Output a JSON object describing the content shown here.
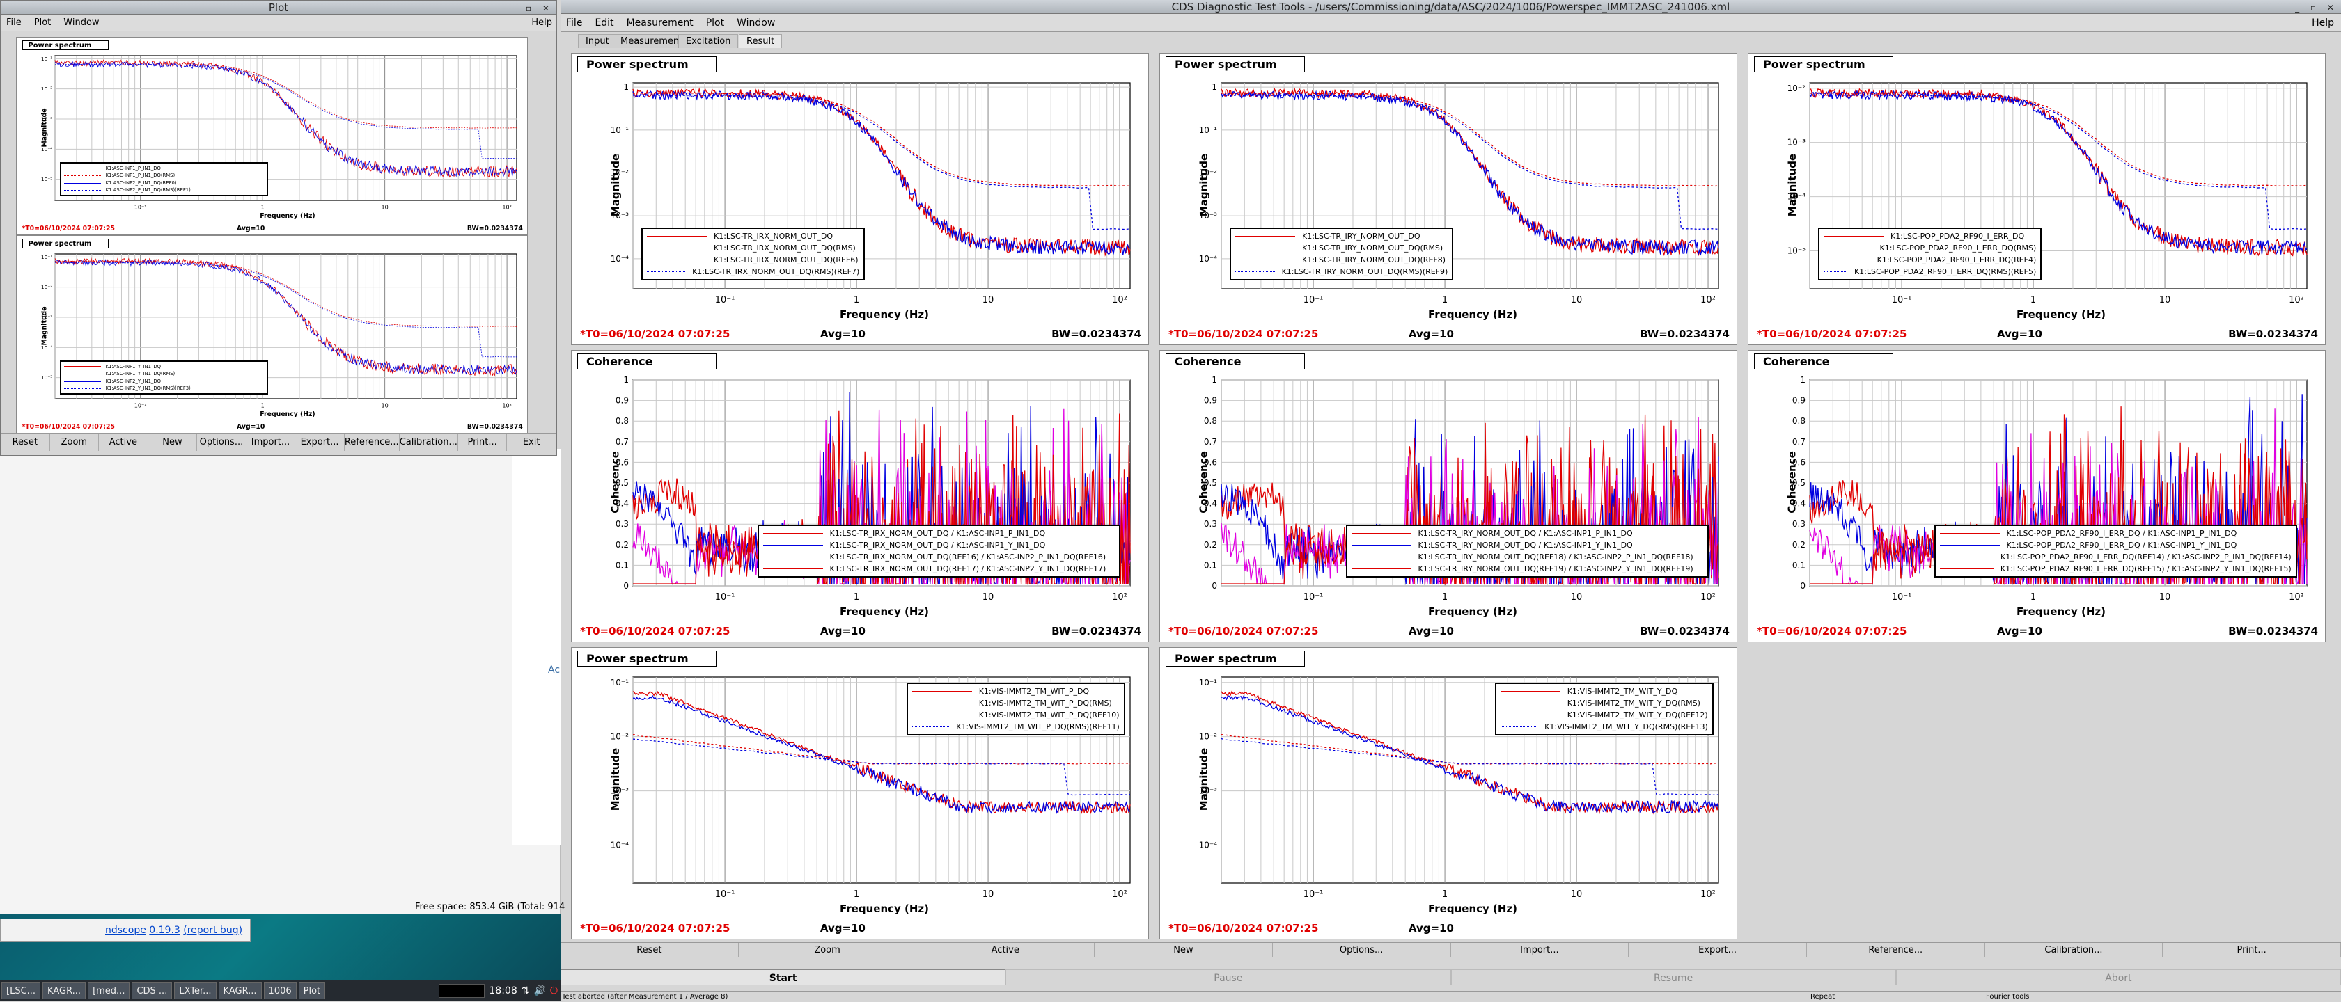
{
  "main_window": {
    "title": "CDS Diagnostic Test Tools - /users/Commissioning/data/ASC/2024/1006/Powerspec_IMMT2ASC_241006.xml",
    "menu": [
      "File",
      "Edit",
      "Measurement",
      "Plot",
      "Window"
    ],
    "help": "Help",
    "tabs": [
      "Input",
      "Measurement",
      "Excitation",
      "Result"
    ],
    "active_tab": "Result",
    "buttons": [
      "Reset",
      "Zoom",
      "Active",
      "New",
      "Options...",
      "Import...",
      "Export...",
      "Reference...",
      "Calibration...",
      "Print..."
    ],
    "actions": [
      "Start",
      "Pause",
      "Resume",
      "Abort"
    ],
    "status": {
      "left": "Test aborted (after Measurement 1 / Average 8)",
      "mid": "Repeat",
      "right": "Fourier tools"
    }
  },
  "plot_window": {
    "title": "Plot",
    "menu": [
      "File",
      "Plot",
      "Window"
    ],
    "help": "Help",
    "buttons": [
      "Reset",
      "Zoom",
      "Active",
      "New",
      "Options...",
      "Import...",
      "Export...",
      "Reference...",
      "Calibration...",
      "Print...",
      "Exit"
    ]
  },
  "background": {
    "free_space": "Free space: 853.4 GiB (Total: 914",
    "ndscope_link": "ndscope",
    "ndscope_version": "0.19.3",
    "report_bug": "(report bug)",
    "side_char": "Ac"
  },
  "taskbar": {
    "items": [
      "[LSC...",
      "KAGR...",
      "[med...",
      "CDS ...",
      "LXTer...",
      "KAGR...",
      "1006",
      "Plot"
    ],
    "clock": "18:08"
  },
  "panels": [
    {
      "title": "Power spectrum",
      "kind": "ps",
      "yaxis": "Magnitude",
      "xaxis": "Frequency (Hz)",
      "yticks": [
        "1",
        "10⁻¹",
        "10⁻²",
        "10⁻³",
        "10⁻⁴"
      ],
      "xticks": [
        "10⁻¹",
        "1",
        "10",
        "10²"
      ],
      "t0": "*T0=06/10/2024 07:07:25",
      "avg": "Avg=10",
      "bw": "BW=0.0234374",
      "legend": [
        "K1:LSC-TR_IRX_NORM_OUT_DQ",
        "K1:LSC-TR_IRX_NORM_OUT_DQ(RMS)",
        "K1:LSC-TR_IRX_NORM_OUT_DQ(REF6)",
        "K1:LSC-TR_IRX_NORM_OUT_DQ(RMS)(REF7)"
      ]
    },
    {
      "title": "Power spectrum",
      "kind": "ps",
      "yaxis": "Magnitude",
      "xaxis": "Frequency (Hz)",
      "yticks": [
        "1",
        "10⁻¹",
        "10⁻²",
        "10⁻³",
        "10⁻⁴"
      ],
      "xticks": [
        "10⁻¹",
        "1",
        "10",
        "10²"
      ],
      "t0": "*T0=06/10/2024 07:07:25",
      "avg": "Avg=10",
      "bw": "BW=0.0234374",
      "legend": [
        "K1:LSC-TR_IRY_NORM_OUT_DQ",
        "K1:LSC-TR_IRY_NORM_OUT_DQ(RMS)",
        "K1:LSC-TR_IRY_NORM_OUT_DQ(REF8)",
        "K1:LSC-TR_IRY_NORM_OUT_DQ(RMS)(REF9)"
      ]
    },
    {
      "title": "Power spectrum",
      "kind": "ps",
      "yaxis": "Magnitude",
      "xaxis": "Frequency (Hz)",
      "yticks": [
        "10⁻²",
        "10⁻³",
        "10⁻⁴",
        "10⁻⁵"
      ],
      "xticks": [
        "10⁻¹",
        "1",
        "10",
        "10²"
      ],
      "t0": "*T0=06/10/2024 07:07:25",
      "avg": "Avg=10",
      "bw": "BW=0.0234374",
      "legend": [
        "K1:LSC-POP_PDA2_RF90_I_ERR_DQ",
        "K1:LSC-POP_PDA2_RF90_I_ERR_DQ(RMS)",
        "K1:LSC-POP_PDA2_RF90_I_ERR_DQ(REF4)",
        "K1:LSC-POP_PDA2_RF90_I_ERR_DQ(RMS)(REF5)"
      ]
    },
    {
      "title": "Coherence",
      "kind": "coh",
      "yaxis": "Coherence",
      "xaxis": "Frequency (Hz)",
      "yticks": [
        "1",
        "0.9",
        "0.8",
        "0.7",
        "0.6",
        "0.5",
        "0.4",
        "0.3",
        "0.2",
        "0.1",
        "0"
      ],
      "xticks": [
        "10⁻¹",
        "1",
        "10",
        "10²"
      ],
      "t0": "*T0=06/10/2024 07:07:25",
      "avg": "Avg=10",
      "bw": "BW=0.0234374",
      "legend": [
        "K1:LSC-TR_IRX_NORM_OUT_DQ / K1:ASC-INP1_P_IN1_DQ",
        "K1:LSC-TR_IRX_NORM_OUT_DQ / K1:ASC-INP1_Y_IN1_DQ",
        "K1:LSC-TR_IRX_NORM_OUT_DQ(REF16) / K1:ASC-INP2_P_IN1_DQ(REF16)",
        "K1:LSC-TR_IRX_NORM_OUT_DQ(REF17) / K1:ASC-INP2_Y_IN1_DQ(REF17)"
      ]
    },
    {
      "title": "Coherence",
      "kind": "coh",
      "yaxis": "Coherence",
      "xaxis": "Frequency (Hz)",
      "yticks": [
        "1",
        "0.9",
        "0.8",
        "0.7",
        "0.6",
        "0.5",
        "0.4",
        "0.3",
        "0.2",
        "0.1",
        "0"
      ],
      "xticks": [
        "10⁻¹",
        "1",
        "10",
        "10²"
      ],
      "t0": "*T0=06/10/2024 07:07:25",
      "avg": "Avg=10",
      "bw": "BW=0.0234374",
      "legend": [
        "K1:LSC-TR_IRY_NORM_OUT_DQ / K1:ASC-INP1_P_IN1_DQ",
        "K1:LSC-TR_IRY_NORM_OUT_DQ / K1:ASC-INP1_Y_IN1_DQ",
        "K1:LSC-TR_IRY_NORM_OUT_DQ(REF18) / K1:ASC-INP2_P_IN1_DQ(REF18)",
        "K1:LSC-TR_IRY_NORM_OUT_DQ(REF19) / K1:ASC-INP2_Y_IN1_DQ(REF19)"
      ]
    },
    {
      "title": "Coherence",
      "kind": "coh",
      "yaxis": "Coherence",
      "xaxis": "Frequency (Hz)",
      "yticks": [
        "1",
        "0.9",
        "0.8",
        "0.7",
        "0.6",
        "0.5",
        "0.4",
        "0.3",
        "0.2",
        "0.1",
        "0"
      ],
      "xticks": [
        "10⁻¹",
        "1",
        "10",
        "10²"
      ],
      "t0": "*T0=06/10/2024 07:07:25",
      "avg": "Avg=10",
      "bw": "BW=0.0234374",
      "legend": [
        "K1:LSC-POP_PDA2_RF90_I_ERR_DQ / K1:ASC-INP1_P_IN1_DQ",
        "K1:LSC-POP_PDA2_RF90_I_ERR_DQ / K1:ASC-INP1_Y_IN1_DQ",
        "K1:LSC-POP_PDA2_RF90_I_ERR_DQ(REF14) / K1:ASC-INP2_P_IN1_DQ(REF14)",
        "K1:LSC-POP_PDA2_RF90_I_ERR_DQ(REF15) / K1:ASC-INP2_Y_IN1_DQ(REF15)"
      ]
    },
    {
      "title": "Power spectrum",
      "kind": "ps2",
      "yaxis": "Magnitude",
      "xaxis": "Frequency (Hz)",
      "yticks": [
        "10⁻¹",
        "10⁻²",
        "10⁻³",
        "10⁻⁴"
      ],
      "xticks": [
        "10⁻¹",
        "1",
        "10",
        "10²"
      ],
      "t0": "*T0=06/10/2024 07:07:25",
      "avg": "Avg=10",
      "bw": "",
      "legend": [
        "K1:VIS-IMMT2_TM_WIT_P_DQ",
        "K1:VIS-IMMT2_TM_WIT_P_DQ(RMS)",
        "K1:VIS-IMMT2_TM_WIT_P_DQ(REF10)",
        "K1:VIS-IMMT2_TM_WIT_P_DQ(RMS)(REF11)"
      ]
    },
    {
      "title": "Power spectrum",
      "kind": "ps2",
      "yaxis": "Magnitude",
      "xaxis": "Frequency (Hz)",
      "yticks": [
        "10⁻¹",
        "10⁻²",
        "10⁻³",
        "10⁻⁴"
      ],
      "xticks": [
        "10⁻¹",
        "1",
        "10",
        "10²"
      ],
      "t0": "*T0=06/10/2024 07:07:25",
      "avg": "Avg=10",
      "bw": "",
      "legend": [
        "K1:VIS-IMMT2_TM_WIT_Y_DQ",
        "K1:VIS-IMMT2_TM_WIT_Y_DQ(RMS)",
        "K1:VIS-IMMT2_TM_WIT_Y_DQ(REF12)",
        "K1:VIS-IMMT2_TM_WIT_Y_DQ(RMS)(REF13)"
      ]
    }
  ],
  "small_panels": [
    {
      "title": "Power spectrum",
      "yaxis": "Magnitude",
      "xaxis": "Frequency (Hz)",
      "yticks": [
        "10⁻¹",
        "10⁻²",
        "10⁻³",
        "10⁻⁴",
        "10⁻⁵"
      ],
      "xticks": [
        "10⁻¹",
        "1",
        "10",
        "10²"
      ],
      "t0": "*T0=06/10/2024 07:07:25",
      "avg": "Avg=10",
      "bw": "BW=0.0234374",
      "legend": [
        "K1:ASC-INP1_P_IN1_DQ",
        "K1:ASC-INP1_P_IN1_DQ(RMS)",
        "K1:ASC-INP2_P_IN1_DQ(REF0)",
        "K1:ASC-INP2_P_IN1_DQ(RMS)(REF1)"
      ]
    },
    {
      "title": "Power spectrum",
      "yaxis": "Magnitude",
      "xaxis": "Frequency (Hz)",
      "yticks": [
        "10⁻¹",
        "10⁻²",
        "10⁻³",
        "10⁻⁴",
        "10⁻⁵"
      ],
      "xticks": [
        "10⁻¹",
        "1",
        "10",
        "10²"
      ],
      "t0": "*T0=06/10/2024 07:07:25",
      "avg": "Avg=10",
      "bw": "BW=0.0234374",
      "legend": [
        "K1:ASC-INP1_Y_IN1_DQ",
        "K1:ASC-INP1_Y_IN1_DQ(RMS)",
        "K1:ASC-INP2_Y_IN1_DQ",
        "K1:ASC-INP2_Y_IN1_DQ(RMS)(REF3)"
      ]
    }
  ],
  "legend_styles": [
    {
      "color": "#e00000",
      "dash": "solid"
    },
    {
      "color": "#e00000",
      "dash": "dotted"
    },
    {
      "color": "#0000e0",
      "dash": "solid"
    },
    {
      "color": "#0000e0",
      "dash": "dotted"
    }
  ],
  "coh_legend_styles": [
    {
      "color": "#e00000",
      "dash": "solid"
    },
    {
      "color": "#0000e0",
      "dash": "solid"
    },
    {
      "color": "#e000e0",
      "dash": "solid"
    },
    {
      "color": "#e00000",
      "dash": "solid"
    }
  ]
}
